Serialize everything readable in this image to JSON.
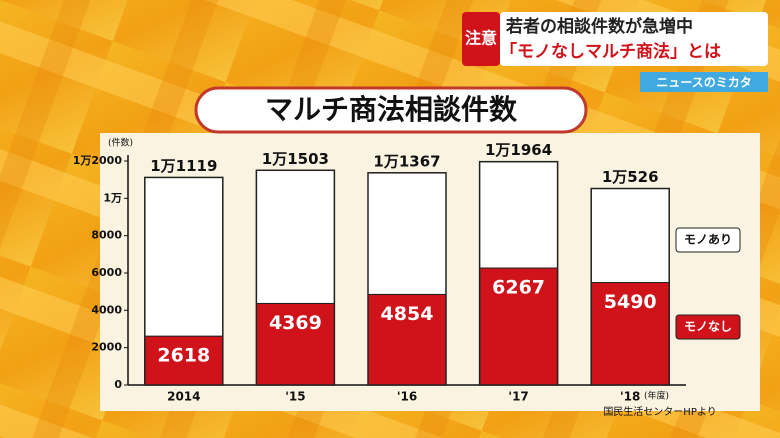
{
  "chart_data": {
    "type": "stacked_bar",
    "title": "マルチ商法相談件数",
    "badge": "注意",
    "headline": [
      "若者の相談件数が急増中",
      "「モノなしマルチ商法」とは"
    ],
    "logo": "ニュースのミカタ",
    "source": "国民生活センターHPより",
    "y_unit": "(件数)",
    "x_unit": "(年度)",
    "categories": [
      "2014",
      "'15",
      "'16",
      "'17",
      "'18"
    ],
    "series": [
      {
        "name": "モノなし",
        "color": "#d0121b",
        "values": [
          2618,
          4369,
          4854,
          6267,
          5490
        ]
      },
      {
        "name": "モノあり",
        "color": "#ffffff",
        "values": [
          8501,
          7134,
          6513,
          5697,
          5036
        ]
      }
    ],
    "totals": [
      11119,
      11503,
      11367,
      11964,
      10526
    ],
    "total_labels": [
      "1万1119",
      "1万1503",
      "1万1367",
      "1万1964",
      "1万526"
    ],
    "ylim": [
      0,
      12000
    ],
    "yticks": [
      0,
      2000,
      4000,
      6000,
      8000,
      {
        "value": 10000,
        "label": "1万"
      },
      {
        "value": 12000,
        "label": "1万2000"
      }
    ],
    "grid": false
  }
}
